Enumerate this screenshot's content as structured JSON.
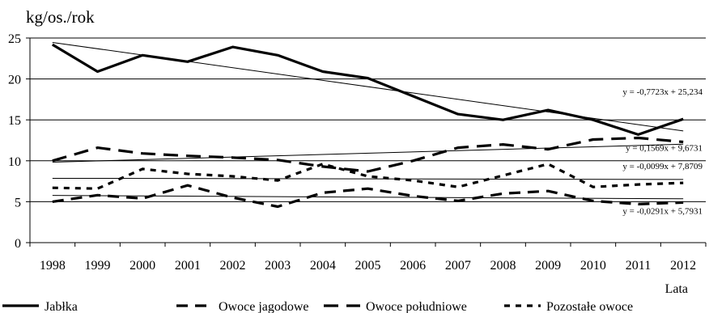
{
  "chart_data": {
    "type": "line",
    "ylabel": "kg/os./rok",
    "xlabel": "Lata",
    "ylim": [
      0,
      25
    ],
    "yticks": [
      0,
      5,
      10,
      15,
      20,
      25
    ],
    "grid": "horizontal",
    "legend_position": "bottom",
    "categories": [
      "1998",
      "1999",
      "2000",
      "2001",
      "2002",
      "2003",
      "2004",
      "2005",
      "2006",
      "2007",
      "2008",
      "2009",
      "2010",
      "2011",
      "2012"
    ],
    "series": [
      {
        "name": "Jabłka",
        "style": "solid",
        "color": "#000000",
        "values": [
          24.2,
          20.9,
          22.9,
          22.1,
          23.9,
          22.9,
          20.9,
          20.1,
          17.9,
          15.7,
          15.0,
          16.2,
          15.0,
          13.2,
          15.1
        ],
        "trend": {
          "label": "y = -0,7723x + 25,234",
          "slope": -0.7723,
          "intercept": 25.234
        }
      },
      {
        "name": "Owoce jagodowe",
        "style": "dash-medium",
        "color": "#000000",
        "values": [
          5.0,
          5.8,
          5.4,
          7.0,
          5.5,
          4.4,
          6.1,
          6.6,
          5.7,
          5.1,
          6.0,
          6.3,
          5.1,
          4.7,
          4.9
        ],
        "trend": {
          "label": "y = -0,0291x + 5,7931",
          "slope": -0.0291,
          "intercept": 5.7931
        }
      },
      {
        "name": "Owoce południowe",
        "style": "dash-long",
        "color": "#000000",
        "values": [
          10.0,
          11.6,
          10.9,
          10.6,
          10.4,
          10.1,
          9.3,
          8.7,
          10.0,
          11.6,
          12.0,
          11.4,
          12.6,
          12.8,
          12.3
        ],
        "trend": {
          "label": "y = 0,1569x + 9,6731",
          "slope": 0.1569,
          "intercept": 9.6731
        }
      },
      {
        "name": "Pozostałe owoce",
        "style": "dash-short",
        "color": "#000000",
        "values": [
          6.7,
          6.6,
          9.0,
          8.4,
          8.1,
          7.6,
          9.6,
          8.1,
          7.6,
          6.8,
          8.2,
          9.6,
          6.8,
          7.1,
          7.3
        ],
        "trend": {
          "label": "y = -0,0099x + 7,8709",
          "slope": -0.0099,
          "intercept": 7.8709
        }
      }
    ]
  }
}
